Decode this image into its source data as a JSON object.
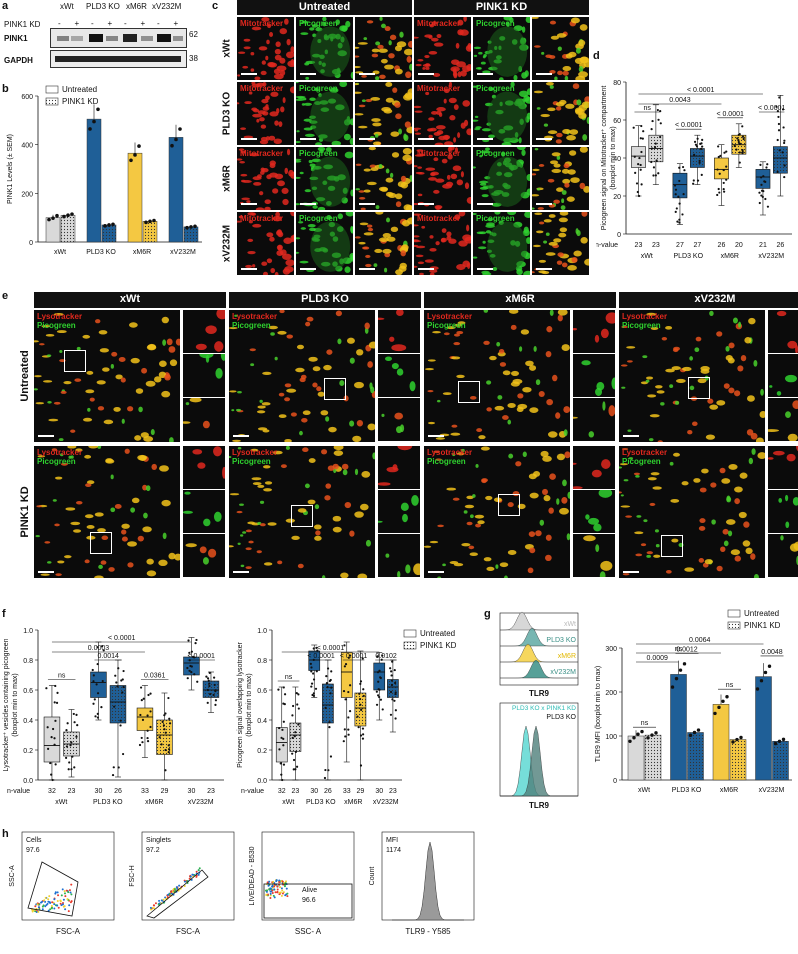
{
  "panels": {
    "a": "a",
    "b": "b",
    "c": "c",
    "d": "d",
    "e": "e",
    "f": "f",
    "g": "g",
    "h": "h"
  },
  "colors": {
    "blue": "#1f5f97",
    "yellow": "#f4c842",
    "grey": "#d9d9d9",
    "red": "#e0281e",
    "green": "#2fd12f"
  },
  "panel_a": {
    "groups": [
      "xWt",
      "PLD3 KO",
      "xM6R",
      "xV232M"
    ],
    "kd_label": "PINK1 KD",
    "kd_signs": [
      "-",
      "+",
      "-",
      "+",
      "-",
      "+",
      "-",
      "+"
    ],
    "blot_labels": [
      "PINK1",
      "GAPDH"
    ],
    "mw": [
      "62",
      "38"
    ]
  },
  "panel_c": {
    "conditions": [
      "Untreated",
      "PINK1 KD"
    ],
    "rows": [
      "xWt",
      "PLD3 KO",
      "xM6R",
      "xV232M"
    ],
    "channel1": "Mitotracker",
    "channel2": "Picogreen"
  },
  "panel_e": {
    "columns": [
      "xWt",
      "PLD3 KO",
      "xM6R",
      "xV232M"
    ],
    "rows": [
      "Untreated",
      "PINK1 KD"
    ],
    "channel1": "Lysotracker",
    "channel2": "Picogreen"
  },
  "panel_g_flow": {
    "top_labels": [
      "xWt",
      "PLD3 KO",
      "xM6R",
      "xV232M"
    ],
    "bottom_labels": [
      "PLD3 KO x PINK1 KD",
      "PLD3 KO"
    ],
    "xlabel": "TLR9"
  },
  "panel_h": {
    "plots": [
      {
        "gate": "Cells",
        "value": "97.6",
        "xlabel": "FSC-A",
        "ylabel": "SSC-A"
      },
      {
        "gate": "Singlets",
        "value": "97.2",
        "xlabel": "FSC-A",
        "ylabel": "FSC-H"
      },
      {
        "gate": "Alive",
        "value": "96.6",
        "xlabel": "SSC- A",
        "ylabel": "LIVE/DEAD - B530"
      },
      {
        "gate": "MFI",
        "value": "1174",
        "xlabel": "TLR9 - Y585",
        "ylabel": "Count"
      }
    ]
  },
  "chart_data": [
    {
      "id": "b",
      "type": "bar",
      "ylabel": "PINK1 Levels (± SEM)",
      "categories": [
        "xWt",
        "PLD3 KO",
        "xM6R",
        "xV232M"
      ],
      "ylim": [
        0,
        600
      ],
      "yticks": [
        0,
        200,
        400,
        600
      ],
      "legend": [
        "Untreated",
        "PINK1 KD"
      ],
      "series": [
        {
          "name": "Untreated",
          "values": [
            100,
            505,
            365,
            430
          ]
        },
        {
          "name": "PINK1 KD",
          "values": [
            110,
            70,
            85,
            62
          ]
        }
      ]
    },
    {
      "id": "d",
      "type": "box",
      "ylabel": "Picogreen signal on Mitotracker⁺ compartment (boxplot min to max)",
      "categories": [
        "xWt",
        "PLD3 KO",
        "xM6R",
        "xV232M"
      ],
      "ylim": [
        0,
        80
      ],
      "yticks": [
        0,
        20,
        40,
        60,
        80
      ],
      "legend": [
        "Untreated",
        "PINK1 KD"
      ],
      "nvalue_label": "n-value",
      "n": [
        [
          "23",
          "23"
        ],
        [
          "27",
          "27"
        ],
        [
          "26",
          "20"
        ],
        [
          "21",
          "26"
        ]
      ],
      "boxes": [
        [
          [
            20,
            35,
            41,
            46,
            57
          ],
          [
            26,
            38,
            45,
            52,
            68
          ]
        ],
        [
          [
            5,
            19,
            26,
            32,
            37
          ],
          [
            26,
            35,
            41,
            45,
            52
          ]
        ],
        [
          [
            15,
            29,
            34,
            40,
            47
          ],
          [
            35,
            42,
            47,
            52,
            58
          ]
        ],
        [
          [
            10,
            24,
            30,
            34,
            38
          ],
          [
            20,
            32,
            40,
            46,
            73
          ]
        ]
      ],
      "stats": [
        {
          "label": "ns",
          "from": 0,
          "to": 1
        },
        {
          "label": "< 0.0001",
          "from": 2,
          "to": 3
        },
        {
          "label": "< 0.0001",
          "from": 4,
          "to": 5
        },
        {
          "label": "< 0.0001",
          "from": 6,
          "to": 7
        },
        {
          "label": "0.0043",
          "from": 0,
          "to": 4
        },
        {
          "label": "< 0.0001",
          "from": 0,
          "to": 6
        }
      ]
    },
    {
      "id": "f1",
      "type": "box",
      "ylabel": "Lysotracker⁺ vesicles containing picogreen (boxplot min to max)",
      "categories": [
        "xWt",
        "PLD3 KO",
        "xM6R",
        "xV232M"
      ],
      "ylim": [
        0,
        1
      ],
      "yticks": [
        "0.0",
        "0.2",
        "0.4",
        "0.6",
        "0.8",
        "1.0"
      ],
      "nvalue_label": "n-value",
      "n": [
        [
          "32",
          "23"
        ],
        [
          "30",
          "26"
        ],
        [
          "33",
          "29"
        ],
        [
          "30",
          "23"
        ]
      ],
      "boxes": [
        [
          [
            0.0,
            0.12,
            0.23,
            0.42,
            0.63
          ],
          [
            0.02,
            0.16,
            0.24,
            0.32,
            0.47
          ]
        ],
        [
          [
            0.4,
            0.55,
            0.65,
            0.72,
            0.92
          ],
          [
            0.02,
            0.38,
            0.52,
            0.63,
            0.8
          ]
        ],
        [
          [
            0.15,
            0.33,
            0.42,
            0.48,
            0.63
          ],
          [
            0.0,
            0.17,
            0.3,
            0.4,
            0.58
          ]
        ],
        [
          [
            0.6,
            0.7,
            0.78,
            0.82,
            0.95
          ],
          [
            0.45,
            0.55,
            0.6,
            0.66,
            0.72
          ]
        ]
      ],
      "stats": [
        {
          "label": "ns",
          "from": 0,
          "to": 1
        },
        {
          "label": "0.0014",
          "from": 2,
          "to": 3
        },
        {
          "label": "0.0361",
          "from": 4,
          "to": 5
        },
        {
          "label": "< 0.0001",
          "from": 6,
          "to": 7
        },
        {
          "label": "0.0003",
          "from": 0,
          "to": 4
        },
        {
          "label": "< 0.0001",
          "from": 0,
          "to": 6
        }
      ]
    },
    {
      "id": "f2",
      "type": "box",
      "ylabel": "Picogreen signal overlapping lysotracker (boxplot min to max)",
      "categories": [
        "xWt",
        "PLD3 KO",
        "xM6R",
        "xV232M"
      ],
      "ylim": [
        0,
        1
      ],
      "yticks": [
        "0.0",
        "0.2",
        "0.4",
        "0.6",
        "0.8",
        "1.0"
      ],
      "legend": [
        "Untreated",
        "PINK1 KD"
      ],
      "nvalue_label": "n-value",
      "n": [
        [
          "32",
          "23"
        ],
        [
          "30",
          "26"
        ],
        [
          "33",
          "29"
        ],
        [
          "30",
          "23"
        ]
      ],
      "boxes": [
        [
          [
            0.0,
            0.12,
            0.25,
            0.35,
            0.62
          ],
          [
            0.0,
            0.19,
            0.3,
            0.38,
            0.62
          ]
        ],
        [
          [
            0.55,
            0.73,
            0.8,
            0.86,
            0.9
          ],
          [
            0.0,
            0.38,
            0.5,
            0.64,
            0.8
          ]
        ],
        [
          [
            0.12,
            0.55,
            0.72,
            0.85,
            0.92
          ],
          [
            0.0,
            0.36,
            0.48,
            0.58,
            0.86
          ]
        ],
        [
          [
            0.4,
            0.6,
            0.72,
            0.78,
            0.85
          ],
          [
            0.32,
            0.55,
            0.62,
            0.67,
            0.8
          ]
        ]
      ],
      "stats": [
        {
          "label": "ns",
          "from": 0,
          "to": 1
        },
        {
          "label": "< 0.0001",
          "from": 2,
          "to": 3
        },
        {
          "label": "< 0.0001",
          "from": 4,
          "to": 5
        },
        {
          "label": "0.0102",
          "from": 6,
          "to": 7
        },
        {
          "label": "< 0.0001",
          "from": 0,
          "to": 6
        }
      ]
    },
    {
      "id": "g",
      "type": "bar",
      "ylabel": "TLR9 MFI (boxplot min to max)",
      "categories": [
        "xWt",
        "PLD3 KO",
        "xM6R",
        "xV232M"
      ],
      "ylim": [
        0,
        300
      ],
      "yticks": [
        0,
        100,
        200,
        300
      ],
      "legend": [
        "Untreated",
        "PINK1 KD"
      ],
      "series": [
        {
          "name": "Untreated",
          "values": [
            100,
            240,
            172,
            235
          ]
        },
        {
          "name": "PINK1 KD",
          "values": [
            102,
            108,
            92,
            88
          ]
        }
      ],
      "stats": [
        {
          "label": "ns",
          "from": 0,
          "to": 1
        },
        {
          "label": "0.0012",
          "from": 2,
          "to": 3
        },
        {
          "label": "ns",
          "from": 4,
          "to": 5
        },
        {
          "label": "0.0048",
          "from": 6,
          "to": 7
        },
        {
          "label": "0.0009",
          "from": 0,
          "to": 2
        },
        {
          "label": "ns",
          "from": 0,
          "to": 4
        },
        {
          "label": "0.0064",
          "from": 0,
          "to": 6
        }
      ]
    }
  ]
}
